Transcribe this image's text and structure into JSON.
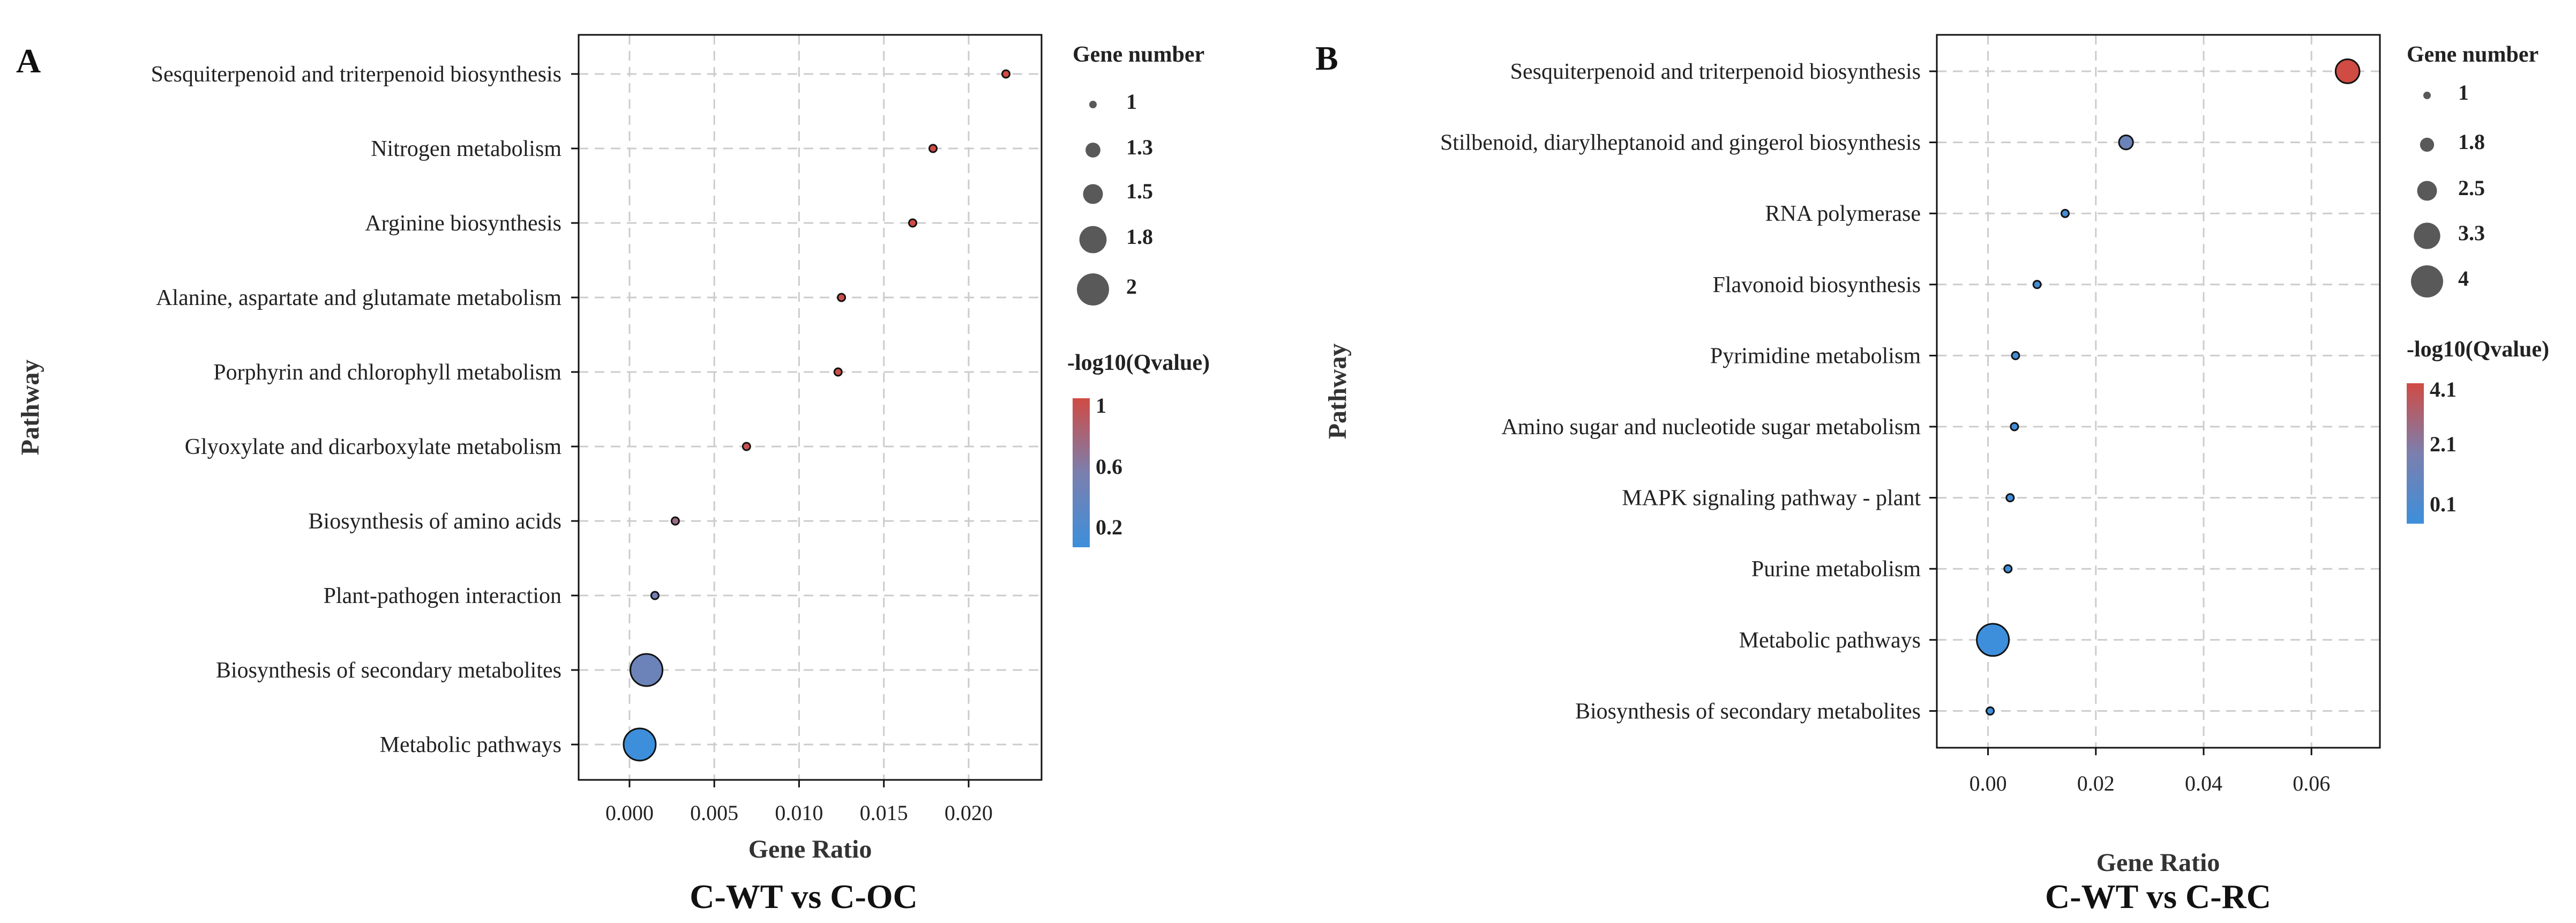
{
  "chart_data": [
    {
      "type": "scatter",
      "panel_label": "A",
      "title": "C-WT vs C-OC",
      "xlabel": "Gene Ratio",
      "ylabel": "Pathway",
      "xlim": [
        -0.003,
        0.0243
      ],
      "xticks": [
        "0.000",
        "0.005",
        "0.010",
        "0.015",
        "0.020"
      ],
      "grid": true,
      "categories": [
        "Sesquiterpenoid and triterpenoid biosynthesis",
        "Nitrogen metabolism",
        "Arginine biosynthesis",
        "Alanine, aspartate and glutamate metabolism",
        "Porphyrin and chlorophyll metabolism",
        "Glyoxylate and dicarboxylate metabolism",
        "Biosynthesis of amino acids",
        "Plant-pathogen interaction",
        "Biosynthesis of secondary metabolites",
        "Metabolic pathways"
      ],
      "points": [
        {
          "pathway": "Sesquiterpenoid and triterpenoid biosynthesis",
          "gene_ratio": 0.0222,
          "gene_number": 1,
          "neg_log10_qvalue": 1.0
        },
        {
          "pathway": "Nitrogen metabolism",
          "gene_ratio": 0.0179,
          "gene_number": 1,
          "neg_log10_qvalue": 1.0
        },
        {
          "pathway": "Arginine biosynthesis",
          "gene_ratio": 0.0167,
          "gene_number": 1,
          "neg_log10_qvalue": 1.0
        },
        {
          "pathway": "Alanine, aspartate and glutamate metabolism",
          "gene_ratio": 0.0125,
          "gene_number": 1,
          "neg_log10_qvalue": 0.98
        },
        {
          "pathway": "Porphyrin and chlorophyll metabolism",
          "gene_ratio": 0.0123,
          "gene_number": 1,
          "neg_log10_qvalue": 0.98
        },
        {
          "pathway": "Glyoxylate and dicarboxylate metabolism",
          "gene_ratio": 0.0069,
          "gene_number": 1,
          "neg_log10_qvalue": 0.95
        },
        {
          "pathway": "Biosynthesis of amino acids",
          "gene_ratio": 0.0027,
          "gene_number": 1,
          "neg_log10_qvalue": 0.75
        },
        {
          "pathway": "Plant-pathogen interaction",
          "gene_ratio": 0.0015,
          "gene_number": 1,
          "neg_log10_qvalue": 0.55
        },
        {
          "pathway": "Biosynthesis of secondary metabolites",
          "gene_ratio": 0.001,
          "gene_number": 2,
          "neg_log10_qvalue": 0.5
        },
        {
          "pathway": "Metabolic pathways",
          "gene_ratio": 0.0006,
          "gene_number": 2,
          "neg_log10_qvalue": 0.2
        }
      ],
      "size_legend": {
        "title": "Gene number",
        "values": [
          1,
          1.3,
          1.5,
          1.8,
          2
        ],
        "labels": [
          "1",
          "1.3",
          "1.5",
          "1.8",
          "2"
        ]
      },
      "color_legend": {
        "title": "-log10(Qvalue)",
        "min": 0.2,
        "max": 1.0,
        "labels": [
          "1",
          "0.6",
          "0.2"
        ],
        "low_color": "#3d8fdb",
        "mid_color": "#7b7fae",
        "high_color": "#d04b44"
      }
    },
    {
      "type": "scatter",
      "panel_label": "B",
      "title": "C-WT vs C-RC",
      "xlabel": "Gene Ratio",
      "ylabel": "Pathway",
      "xlim": [
        -0.0095,
        0.0727
      ],
      "xticks": [
        "0.00",
        "0.02",
        "0.04",
        "0.06"
      ],
      "grid": true,
      "categories": [
        "Sesquiterpenoid and triterpenoid biosynthesis",
        "Stilbenoid, diarylheptanoid and gingerol biosynthesis",
        "RNA polymerase",
        "Flavonoid biosynthesis",
        "Pyrimidine metabolism",
        "Amino sugar and nucleotide sugar metabolism",
        "MAPK signaling pathway - plant",
        "Purine metabolism",
        "Metabolic pathways",
        "Biosynthesis of secondary metabolites"
      ],
      "points": [
        {
          "pathway": "Sesquiterpenoid and triterpenoid biosynthesis",
          "gene_ratio": 0.0667,
          "gene_number": 3,
          "neg_log10_qvalue": 4.1
        },
        {
          "pathway": "Stilbenoid, diarylheptanoid and gingerol biosynthesis",
          "gene_ratio": 0.0256,
          "gene_number": 1.8,
          "neg_log10_qvalue": 1.6
        },
        {
          "pathway": "RNA polymerase",
          "gene_ratio": 0.0143,
          "gene_number": 1,
          "neg_log10_qvalue": 0.4
        },
        {
          "pathway": "Flavonoid biosynthesis",
          "gene_ratio": 0.0091,
          "gene_number": 1,
          "neg_log10_qvalue": 0.3
        },
        {
          "pathway": "Pyrimidine metabolism",
          "gene_ratio": 0.0051,
          "gene_number": 1,
          "neg_log10_qvalue": 0.2
        },
        {
          "pathway": "Amino sugar and nucleotide sugar metabolism",
          "gene_ratio": 0.0049,
          "gene_number": 1,
          "neg_log10_qvalue": 0.2
        },
        {
          "pathway": "MAPK signaling pathway - plant",
          "gene_ratio": 0.0041,
          "gene_number": 1,
          "neg_log10_qvalue": 0.2
        },
        {
          "pathway": "Purine metabolism",
          "gene_ratio": 0.0037,
          "gene_number": 1,
          "neg_log10_qvalue": 0.2
        },
        {
          "pathway": "Metabolic pathways",
          "gene_ratio": 0.0009,
          "gene_number": 4,
          "neg_log10_qvalue": 0.1
        },
        {
          "pathway": "Biosynthesis of secondary metabolites",
          "gene_ratio": 0.0004,
          "gene_number": 1,
          "neg_log10_qvalue": 0.1
        }
      ],
      "size_legend": {
        "title": "Gene number",
        "values": [
          1,
          1.8,
          2.5,
          3.3,
          4
        ],
        "labels": [
          "1",
          "1.8",
          "2.5",
          "3.3",
          "4"
        ]
      },
      "color_legend": {
        "title": "-log10(Qvalue)",
        "min": 0.1,
        "max": 4.1,
        "labels": [
          "4.1",
          "2.1",
          "0.1"
        ],
        "low_color": "#3d8fdb",
        "mid_color": "#7b7fae",
        "high_color": "#d04b44"
      }
    }
  ]
}
